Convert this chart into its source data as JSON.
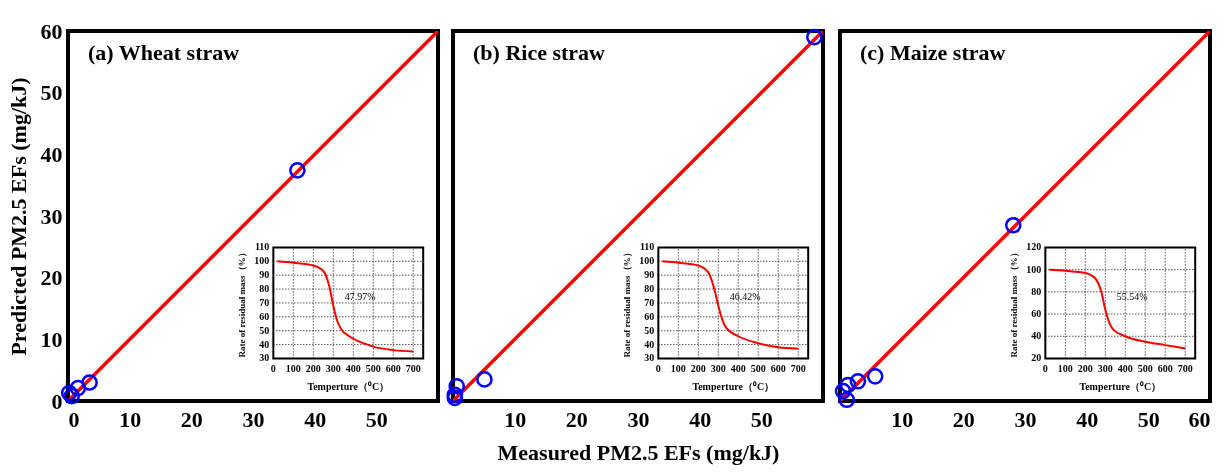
{
  "chart_data": [
    {
      "type": "scatter",
      "title": "(a) Wheat straw",
      "ylabel": "Predicted PM2.5 EFs  (mg/kJ)",
      "xlim": [
        0,
        60
      ],
      "ylim": [
        0,
        60
      ],
      "xticks": [
        0,
        10,
        20,
        30,
        40,
        50
      ],
      "yticks": [
        0,
        10,
        20,
        30,
        40,
        50,
        60
      ],
      "grid": false,
      "series": [
        {
          "type": "scatter",
          "marker": "circle",
          "color": "#0000ff",
          "x": [
            37.2,
            0.2,
            1.6,
            3.5,
            0.6
          ],
          "values": [
            37.4,
            1.3,
            2.1,
            3.0,
            0.8
          ]
        },
        {
          "type": "line",
          "marker": "none",
          "color": "#ff0000",
          "x": [
            0,
            60
          ],
          "values": [
            0,
            60
          ]
        }
      ]
    },
    {
      "type": "line",
      "xlabel": "Temperture（⁰C）",
      "ylabel": "Rate of residual mass（%）",
      "xlim": [
        0,
        750
      ],
      "ylim": [
        30,
        110
      ],
      "xticks": [
        0,
        100,
        200,
        300,
        400,
        500,
        600,
        700
      ],
      "yticks": [
        30,
        40,
        50,
        60,
        70,
        80,
        90,
        100,
        110
      ],
      "grid": true,
      "series": [
        {
          "color": "#ff0000",
          "x": [
            20,
            100,
            200,
            250,
            280,
            300,
            320,
            340,
            380,
            450,
            500,
            600,
            700
          ],
          "values": [
            100,
            99,
            97,
            93,
            82,
            68,
            57,
            51,
            46,
            41,
            38.5,
            36,
            35
          ]
        }
      ],
      "annotations": [
        "47.97%"
      ]
    },
    {
      "type": "scatter",
      "title": "(b) Rice straw",
      "xlabel": "Measured PM2.5 EFs  (mg/kJ)",
      "xlim": [
        0,
        60
      ],
      "ylim": [
        0,
        60
      ],
      "xticks": [
        10,
        20,
        30,
        40,
        50
      ],
      "tick_labels": "x",
      "grid": false,
      "series": [
        {
          "type": "scatter",
          "marker": "circle",
          "color": "#0000ff",
          "x": [
            58.6,
            5.1,
            0.6,
            0.3,
            0.3
          ],
          "values": [
            59.0,
            3.5,
            2.4,
            1.0,
            0.5
          ]
        },
        {
          "type": "line",
          "marker": "none",
          "color": "#ff0000",
          "x": [
            0,
            60
          ],
          "values": [
            0,
            60
          ]
        }
      ]
    },
    {
      "type": "line",
      "xlabel": "Temperture（⁰C）",
      "ylabel": "Rate of residual mass（%）",
      "xlim": [
        0,
        750
      ],
      "ylim": [
        30,
        110
      ],
      "xticks": [
        0,
        100,
        200,
        300,
        400,
        500,
        600,
        700
      ],
      "yticks": [
        30,
        40,
        50,
        60,
        70,
        80,
        90,
        100,
        110
      ],
      "grid": true,
      "series": [
        {
          "color": "#ff0000",
          "x": [
            20,
            100,
            200,
            250,
            280,
            300,
            320,
            340,
            400,
            500,
            600,
            700
          ],
          "values": [
            100,
            99,
            97,
            92,
            80,
            68,
            58,
            52,
            46,
            41,
            38,
            37
          ]
        }
      ],
      "annotations": [
        "46.42%"
      ]
    },
    {
      "type": "scatter",
      "title": "(c) Maize straw",
      "xlim": [
        0,
        60
      ],
      "ylim": [
        0,
        60
      ],
      "xticks": [
        10,
        20,
        30,
        40,
        50,
        60
      ],
      "tick_labels": "x",
      "grid": false,
      "series": [
        {
          "type": "scatter",
          "marker": "circle",
          "color": "#0000ff",
          "x": [
            28.1,
            5.7,
            2.9,
            1.3,
            0.5,
            1.1
          ],
          "values": [
            28.5,
            4.0,
            3.2,
            2.6,
            1.6,
            0.2
          ]
        },
        {
          "type": "line",
          "marker": "none",
          "color": "#ff0000",
          "x": [
            0,
            60
          ],
          "values": [
            0,
            60
          ]
        }
      ]
    },
    {
      "type": "line",
      "xlabel": "Temperture（⁰C）",
      "ylabel": "Rate of residual mass（%）",
      "xlim": [
        0,
        750
      ],
      "ylim": [
        20,
        120
      ],
      "xticks": [
        0,
        100,
        200,
        300,
        400,
        500,
        600,
        700
      ],
      "yticks": [
        20,
        40,
        60,
        80,
        100,
        120
      ],
      "grid": true,
      "series": [
        {
          "color": "#ff0000",
          "x": [
            20,
            100,
            200,
            250,
            280,
            300,
            320,
            340,
            400,
            500,
            600,
            700
          ],
          "values": [
            100,
            99,
            97,
            92,
            80,
            64,
            52,
            46,
            40,
            35,
            32,
            29
          ]
        }
      ],
      "annotations": [
        "55.54%"
      ]
    }
  ]
}
